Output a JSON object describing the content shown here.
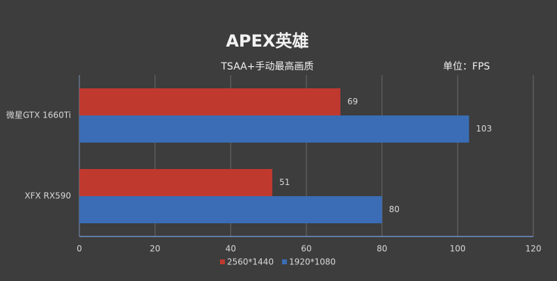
{
  "chart_data": {
    "type": "barh",
    "title": "APEX英雄",
    "subtitle": "TSAA+手动最高画质",
    "unit": "单位：FPS",
    "categories": [
      "微星GTX 1660Ti",
      "XFX RX590"
    ],
    "series": [
      {
        "name": "2560*1440",
        "color": "#c0392f",
        "values": [
          69,
          51
        ]
      },
      {
        "name": "1920*1080",
        "color": "#3a6db5",
        "values": [
          103,
          80
        ]
      }
    ],
    "xlim": [
      0,
      120
    ],
    "xticks": [
      0,
      20,
      40,
      60,
      80,
      100,
      120
    ],
    "grid": true
  }
}
